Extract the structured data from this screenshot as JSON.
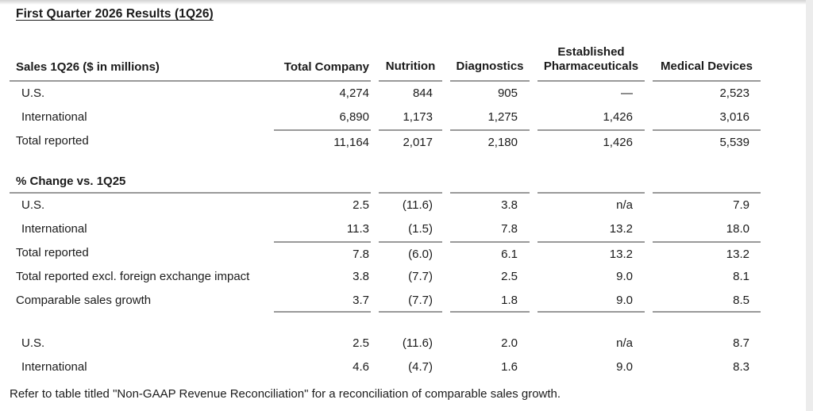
{
  "title": "First Quarter 2026 Results (1Q26)",
  "sales_table": {
    "header_label": "Sales 1Q26 ($ in millions)",
    "columns": [
      "Total Company",
      "Nutrition",
      "Diagnostics",
      "Established Pharmaceuticals",
      "Medical Devices"
    ],
    "rows": [
      {
        "label": "U.S.",
        "values": [
          "4,274",
          "844",
          "905",
          "—",
          "2,523"
        ]
      },
      {
        "label": "International",
        "values": [
          "6,890",
          "1,173",
          "1,275",
          "1,426",
          "3,016"
        ]
      },
      {
        "label": "Total reported",
        "values": [
          "11,164",
          "2,017",
          "2,180",
          "1,426",
          "5,539"
        ]
      }
    ]
  },
  "change_table": {
    "header_label": "% Change vs. 1Q25",
    "rows": [
      {
        "label": "U.S.",
        "values": [
          "2.5",
          "(11.6)",
          "3.8",
          "n/a",
          "7.9"
        ]
      },
      {
        "label": "International",
        "values": [
          "11.3",
          "(1.5)",
          "7.8",
          "13.2",
          "18.0"
        ]
      },
      {
        "label": "Total reported",
        "values": [
          "7.8",
          "(6.0)",
          "6.1",
          "13.2",
          "13.2"
        ]
      },
      {
        "label": "Total reported excl. foreign exchange impact",
        "values": [
          "3.8",
          "(7.7)",
          "2.5",
          "9.0",
          "8.1"
        ]
      },
      {
        "label": "Comparable sales growth",
        "values": [
          "3.7",
          "(7.7)",
          "1.8",
          "9.0",
          "8.5"
        ]
      }
    ],
    "comparable_rows": [
      {
        "label": "U.S.",
        "values": [
          "2.5",
          "(11.6)",
          "2.0",
          "n/a",
          "8.7"
        ]
      },
      {
        "label": "International",
        "values": [
          "4.6",
          "(4.7)",
          "1.6",
          "9.0",
          "8.3"
        ]
      }
    ]
  },
  "footnote": "Refer to table titled \"Non-GAAP Revenue Reconciliation\" for a reconciliation of comparable sales growth."
}
